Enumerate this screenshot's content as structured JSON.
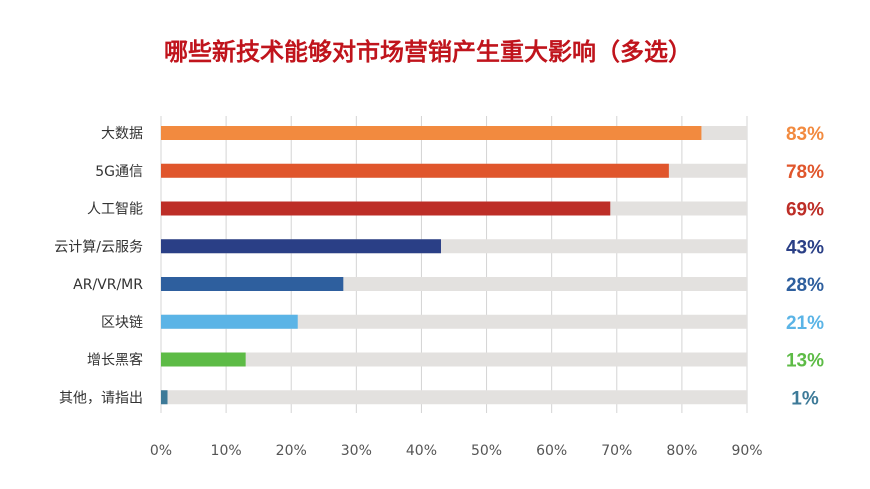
{
  "chart_data": {
    "type": "bar",
    "orientation": "horizontal",
    "title": "哪些新技术能够对市场营销产生重大影响（多选）",
    "title_color": "#C0141C",
    "categories": [
      "大数据",
      "5G通信",
      "人工智能",
      "云计算/云服务",
      "AR/VR/MR",
      "区块链",
      "增长黑客",
      "其他，请指出"
    ],
    "values": [
      83,
      78,
      69,
      43,
      28,
      21,
      13,
      1
    ],
    "value_labels": [
      "83%",
      "78%",
      "69%",
      "43%",
      "28%",
      "21%",
      "13%",
      "1%"
    ],
    "colors": [
      "#F28A3F",
      "#E0562C",
      "#BD2E27",
      "#2A3F86",
      "#2E5F9E",
      "#5BB4E6",
      "#5DBB46",
      "#3D7A98"
    ],
    "track_color": "#E3E1DF",
    "xlim": [
      0,
      90
    ],
    "x_ticks": [
      "0%",
      "10%",
      "20%",
      "30%",
      "40%",
      "50%",
      "60%",
      "70%",
      "80%",
      "90%"
    ],
    "grid": true,
    "legend": "none"
  }
}
